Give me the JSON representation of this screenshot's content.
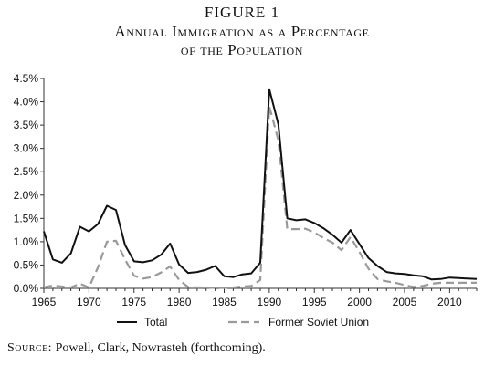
{
  "figure_label": "FIGURE 1",
  "title_line1": "Annual Immigration as a Percentage",
  "title_line2": "of the Population",
  "source": {
    "label": "Source:",
    "text": "Powell, Clark, Nowrasteh (forthcoming)."
  },
  "colors": {
    "total": "#111111",
    "soviet": "#9a9a9a",
    "axis": "#333333"
  },
  "chart_data": {
    "type": "line",
    "title": "Annual Immigration as a Percentage of the Population",
    "xlabel": "",
    "ylabel": "",
    "xlim": [
      1965,
      2013
    ],
    "ylim": [
      0,
      4.5
    ],
    "x_ticks": [
      1965,
      1970,
      1975,
      1980,
      1985,
      1990,
      1995,
      2000,
      2005,
      2010
    ],
    "y_ticks": [
      "0.0%",
      "0.5%",
      "1.0%",
      "1.5%",
      "2.0%",
      "2.5%",
      "3.0%",
      "3.5%",
      "4.0%",
      "4.5%"
    ],
    "grid": false,
    "legend_position": "bottom",
    "x": [
      1965,
      1966,
      1967,
      1968,
      1969,
      1970,
      1971,
      1972,
      1973,
      1974,
      1975,
      1976,
      1977,
      1978,
      1979,
      1980,
      1981,
      1982,
      1983,
      1984,
      1985,
      1986,
      1987,
      1988,
      1989,
      1990,
      1991,
      1992,
      1993,
      1994,
      1995,
      1996,
      1997,
      1998,
      1999,
      2000,
      2001,
      2002,
      2003,
      2004,
      2005,
      2006,
      2007,
      2008,
      2009,
      2010,
      2011,
      2012,
      2013
    ],
    "series": [
      {
        "name": "Total",
        "style": "solid",
        "values": [
          1.22,
          0.62,
          0.55,
          0.75,
          1.32,
          1.22,
          1.38,
          1.77,
          1.68,
          0.93,
          0.58,
          0.56,
          0.6,
          0.72,
          0.96,
          0.51,
          0.33,
          0.35,
          0.4,
          0.48,
          0.26,
          0.24,
          0.3,
          0.32,
          0.55,
          4.27,
          3.52,
          1.5,
          1.46,
          1.48,
          1.4,
          1.29,
          1.15,
          0.98,
          1.25,
          0.95,
          0.65,
          0.48,
          0.35,
          0.32,
          0.31,
          0.28,
          0.26,
          0.19,
          0.2,
          0.23,
          0.22,
          0.21,
          0.2
        ]
      },
      {
        "name": "Former Soviet Union",
        "style": "dashed",
        "values": [
          0.02,
          0.06,
          0.04,
          0.02,
          0.1,
          0.02,
          0.45,
          1.0,
          1.02,
          0.62,
          0.27,
          0.21,
          0.24,
          0.34,
          0.47,
          0.18,
          0.03,
          0.02,
          0.02,
          0.01,
          0.01,
          0.02,
          0.04,
          0.05,
          0.18,
          3.9,
          3.18,
          1.27,
          1.27,
          1.28,
          1.2,
          1.08,
          0.98,
          0.82,
          1.1,
          0.78,
          0.42,
          0.2,
          0.15,
          0.12,
          0.07,
          0.03,
          0.05,
          0.1,
          0.12,
          0.12,
          0.12,
          0.12,
          0.12
        ]
      }
    ]
  }
}
